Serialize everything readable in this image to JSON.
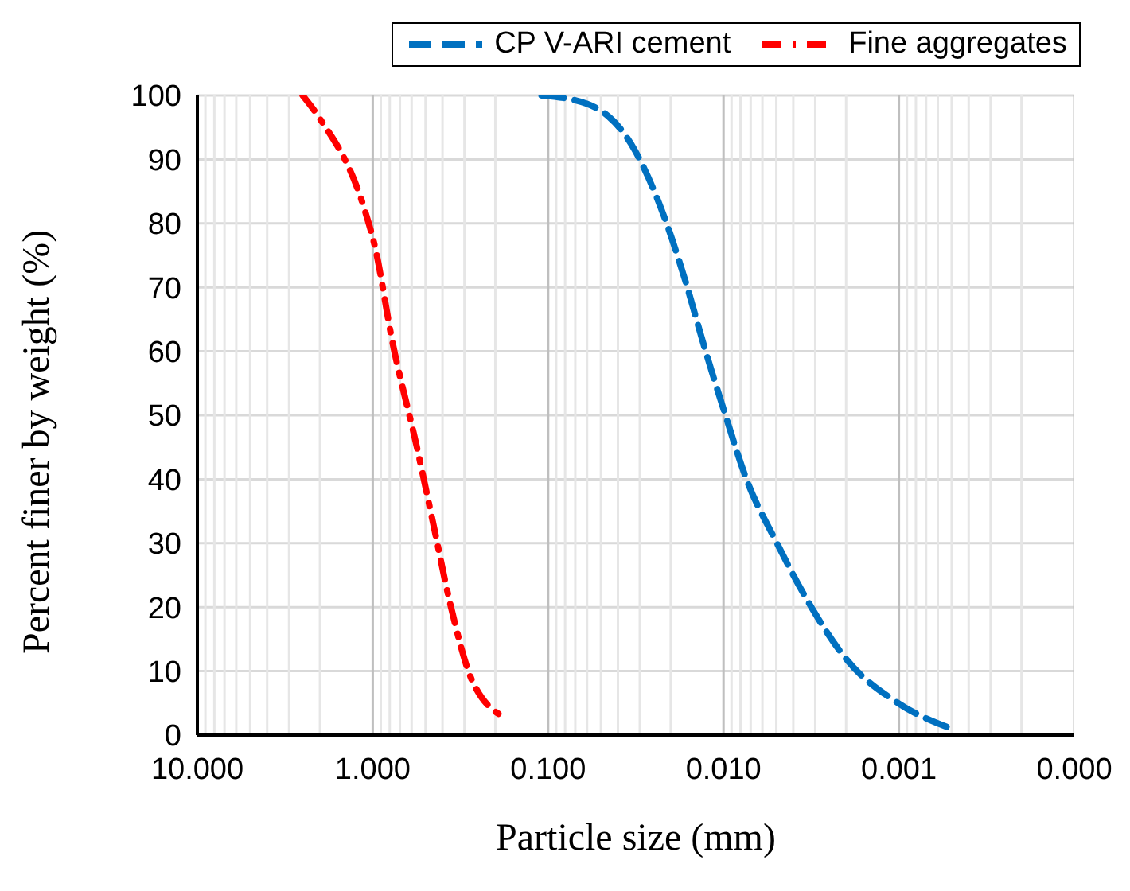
{
  "chart_data": {
    "type": "line",
    "xlabel": "Particle size (mm)",
    "ylabel": "Percent finer by weight (%)",
    "log": "x",
    "xlim": [
      10,
      0.0001
    ],
    "xticks": [
      {
        "value": 10,
        "label": "10.000"
      },
      {
        "value": 9,
        "label": null
      },
      {
        "value": 8,
        "label": null
      },
      {
        "value": 7,
        "label": null
      },
      {
        "value": 6,
        "label": null
      },
      {
        "value": 5,
        "label": null
      },
      {
        "value": 4,
        "label": null
      },
      {
        "value": 3,
        "label": null
      },
      {
        "value": 2,
        "label": null
      },
      {
        "value": 1,
        "label": "1.000"
      },
      {
        "value": 0.9,
        "label": null
      },
      {
        "value": 0.8,
        "label": null
      },
      {
        "value": 0.7,
        "label": null
      },
      {
        "value": 0.6,
        "label": null
      },
      {
        "value": 0.5,
        "label": null
      },
      {
        "value": 0.4,
        "label": null
      },
      {
        "value": 0.3,
        "label": null
      },
      {
        "value": 0.2,
        "label": null
      },
      {
        "value": 0.1,
        "label": "0.100"
      },
      {
        "value": 0.09,
        "label": null
      },
      {
        "value": 0.08,
        "label": null
      },
      {
        "value": 0.07,
        "label": null
      },
      {
        "value": 0.06,
        "label": null
      },
      {
        "value": 0.05,
        "label": null
      },
      {
        "value": 0.04,
        "label": null
      },
      {
        "value": 0.03,
        "label": null
      },
      {
        "value": 0.02,
        "label": null
      },
      {
        "value": 0.01,
        "label": "0.010"
      },
      {
        "value": 0.009,
        "label": null
      },
      {
        "value": 0.008,
        "label": null
      },
      {
        "value": 0.007,
        "label": null
      },
      {
        "value": 0.006,
        "label": null
      },
      {
        "value": 0.005,
        "label": null
      },
      {
        "value": 0.004,
        "label": null
      },
      {
        "value": 0.003,
        "label": null
      },
      {
        "value": 0.002,
        "label": null
      },
      {
        "value": 0.001,
        "label": "0.001"
      },
      {
        "value": 0.0009,
        "label": null
      },
      {
        "value": 0.0008,
        "label": null
      },
      {
        "value": 0.0007,
        "label": null
      },
      {
        "value": 0.0006,
        "label": null
      },
      {
        "value": 0.0005,
        "label": null
      },
      {
        "value": 0.0004,
        "label": null
      },
      {
        "value": 0.0003,
        "label": null
      },
      {
        "value": 0.0002,
        "label": null
      },
      {
        "value": 0.0001,
        "label": "0.000"
      }
    ],
    "ylim": [
      0,
      100
    ],
    "yticks": [
      0,
      10,
      20,
      30,
      40,
      50,
      60,
      70,
      80,
      90,
      100
    ],
    "grid": true,
    "legend": "top",
    "marker": "none",
    "series": [
      {
        "name": "CP V-ARI cement",
        "color": "#0070c0",
        "line_style": "dashed",
        "x": [
          0.109,
          0.06,
          0.032,
          0.0219,
          0.0165,
          0.0129,
          0.0098,
          0.0074,
          0.005,
          0.0033,
          0.002,
          0.00101,
          0.00049
        ],
        "values": [
          100,
          98.7,
          91.4,
          81.2,
          71,
          60.8,
          50.2,
          40,
          30.2,
          20.9,
          11.9,
          5,
          0.9
        ]
      },
      {
        "name": "Fine aggregates",
        "color": "#ff0000",
        "line_style": "dashdot",
        "x": [
          2.51,
          2.04,
          1.1,
          0.98,
          0.77,
          0.56,
          0.45,
          0.36,
          0.27,
          0.17
        ],
        "values": [
          100,
          96.7,
          81.7,
          76.8,
          61.3,
          45,
          32.8,
          20.3,
          8.4,
          2.5
        ]
      }
    ]
  }
}
